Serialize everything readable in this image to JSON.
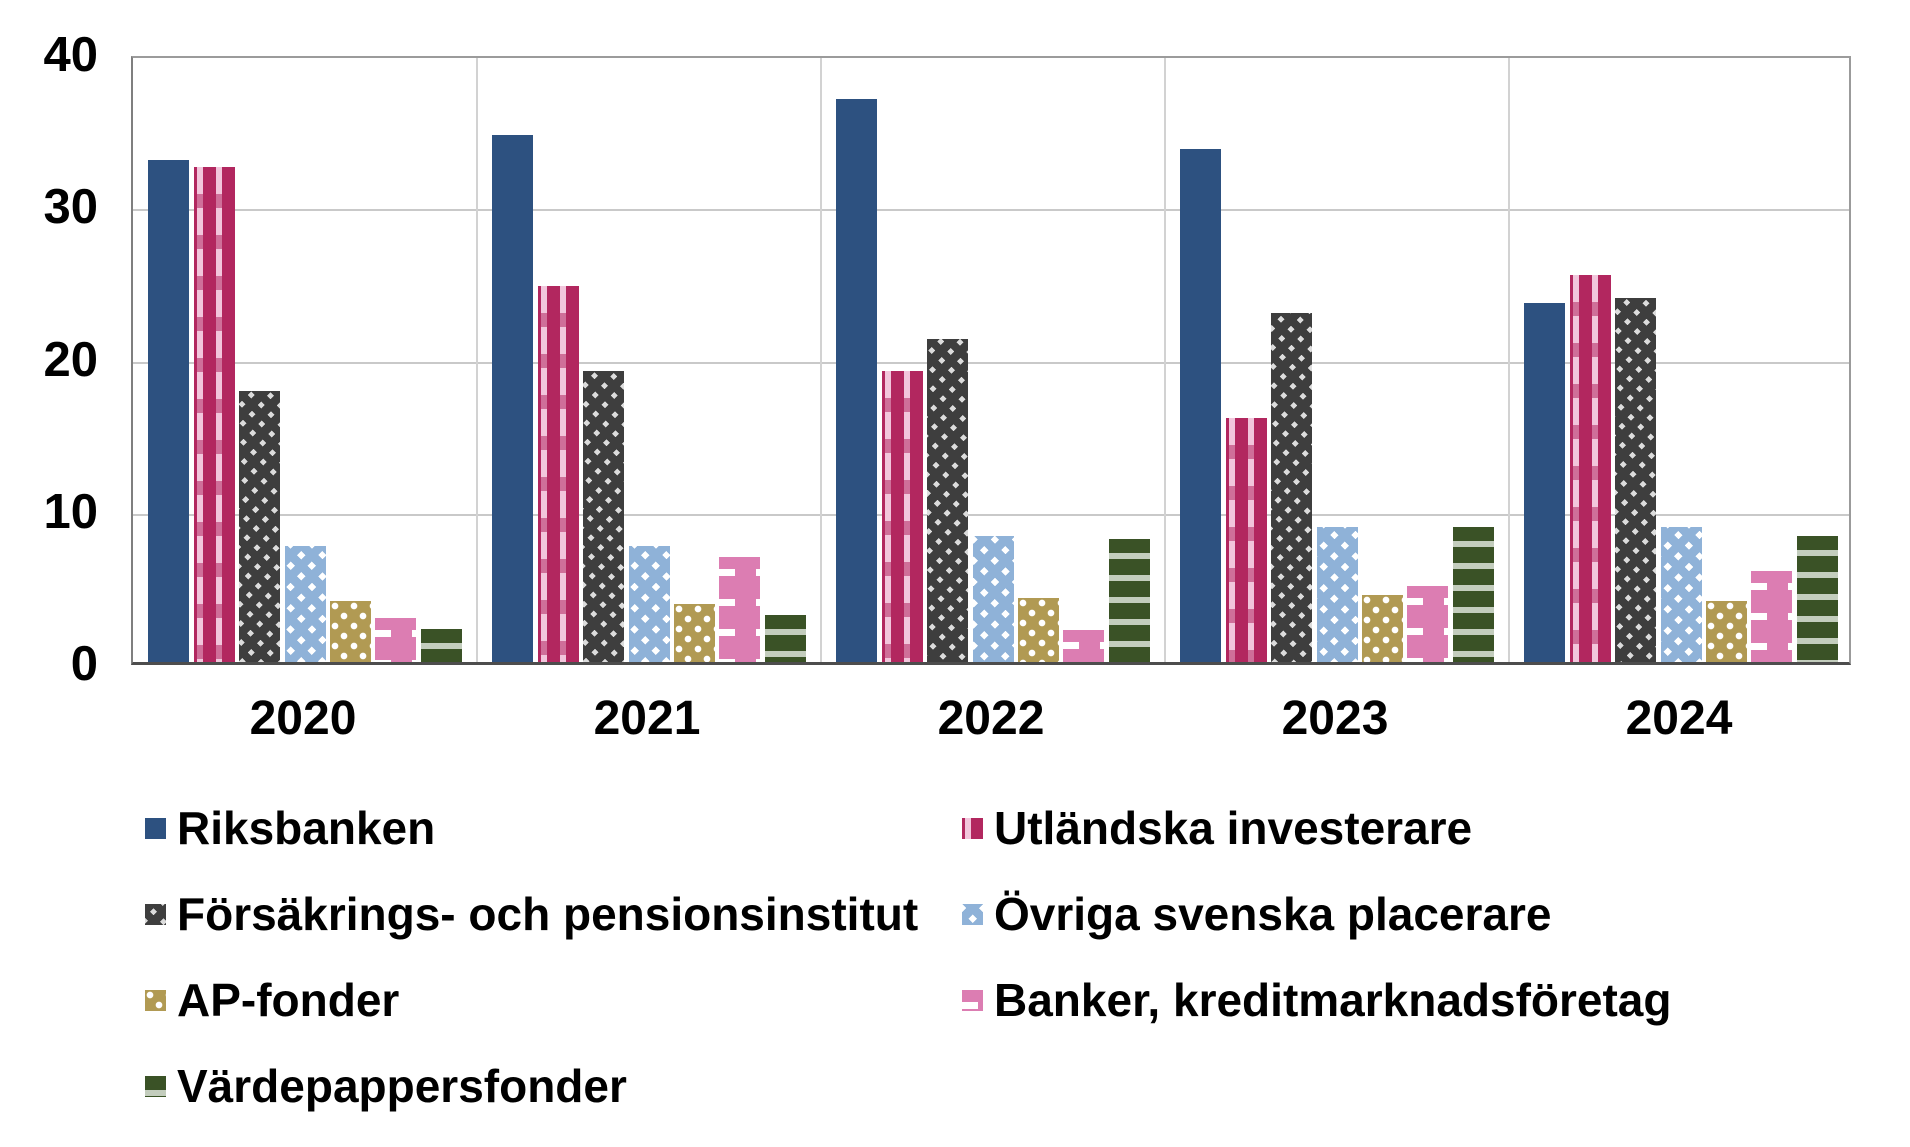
{
  "chart_data": {
    "type": "bar",
    "title": "",
    "xlabel": "",
    "ylabel": "",
    "categories": [
      "2020",
      "2021",
      "2022",
      "2023",
      "2024"
    ],
    "series": [
      {
        "key": "riksbanken",
        "name": "Riksbanken",
        "color": "#2D5180",
        "pattern": "solid",
        "values": [
          33.0,
          34.6,
          37.0,
          33.7,
          23.6
        ]
      },
      {
        "key": "utlandska-investerare",
        "name": "Utländska investerare",
        "color": "#B2275F",
        "pattern": "dashed-vertical",
        "pattern_color": "#F2C6DC",
        "values": [
          32.5,
          24.7,
          19.1,
          16.0,
          25.4
        ]
      },
      {
        "key": "forsakrings-och-pensionsinstitut",
        "name": "Försäkrings- och pensionsinstitut",
        "color": "#3E3E3E",
        "pattern": "diagonal-down",
        "pattern_color": "#DCDCDC",
        "values": [
          17.8,
          19.1,
          21.2,
          22.9,
          23.9
        ]
      },
      {
        "key": "ovriga-svenska-placerare",
        "name": "Övriga svenska placerare",
        "color": "#8FB2D8",
        "pattern": "diagonal-up",
        "pattern_color": "#FFFFFF",
        "values": [
          7.6,
          7.6,
          8.3,
          8.9,
          8.9
        ]
      },
      {
        "key": "ap-fonder",
        "name": "AP-fonder",
        "color": "#B19A53",
        "pattern": "dots",
        "pattern_color": "#FFFFFF",
        "values": [
          4.0,
          3.8,
          4.2,
          4.4,
          4.0
        ]
      },
      {
        "key": "banker-kreditmarknadsforetag",
        "name": "Banker, kreditmarknadsföretag",
        "color": "#DC7DB2",
        "pattern": "dashed-horizontal",
        "pattern_color": "#FFFFFF",
        "values": [
          2.9,
          6.9,
          2.1,
          5.0,
          6.0
        ]
      },
      {
        "key": "vardepappersfonder",
        "name": "Värdepappersfonder",
        "color": "#3A5226",
        "pattern": "stripes-horizontal",
        "pattern_color": "#C3CDBD",
        "values": [
          2.2,
          3.1,
          8.1,
          8.9,
          8.3
        ]
      }
    ],
    "ylim": [
      0,
      40
    ],
    "yticks": [
      0,
      10,
      20,
      30,
      40
    ],
    "grid": true,
    "grid_color": "#c9c9c9",
    "legend_position": "bottom",
    "legend_columns": 2
  }
}
